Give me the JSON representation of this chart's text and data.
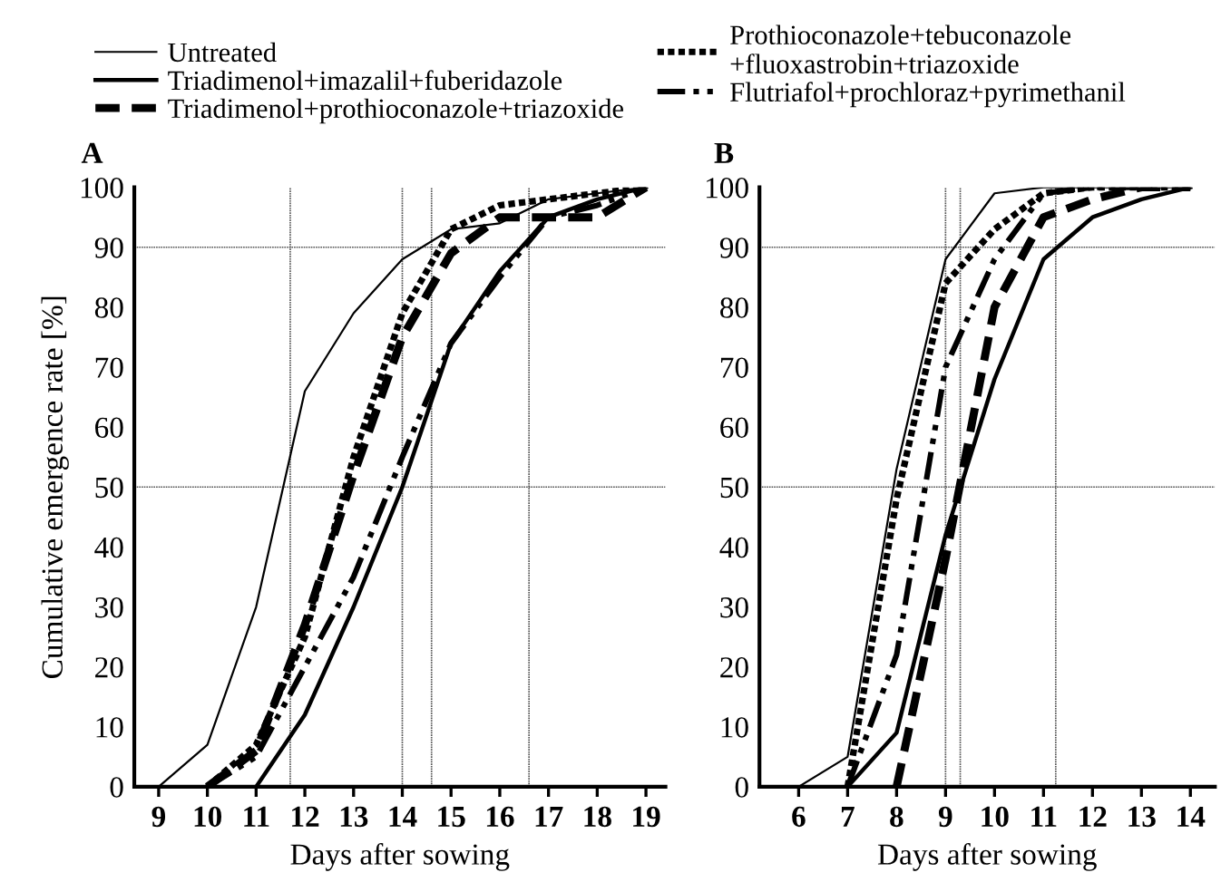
{
  "chart_data": [
    {
      "type": "line",
      "title": "A",
      "xlabel": "Days after sowing",
      "ylabel": "Cumulative emergence rate [%]",
      "x": [
        9,
        10,
        11,
        12,
        13,
        14,
        15,
        16,
        17,
        18,
        19
      ],
      "xlim": [
        8.5,
        19.4
      ],
      "xticks": [
        9,
        10,
        11,
        12,
        13,
        14,
        15,
        16,
        17,
        18,
        19
      ],
      "ylim": [
        0,
        100
      ],
      "yticks": [
        0,
        10,
        20,
        30,
        40,
        50,
        60,
        70,
        80,
        90,
        100
      ],
      "grid": false,
      "legend": "top",
      "marker": "none",
      "series": [
        {
          "name": "Untreated",
          "color": "#000000",
          "line_style": "solid",
          "values": [
            0,
            7,
            30,
            66,
            79,
            88,
            93,
            94,
            98,
            99,
            100
          ]
        },
        {
          "name": "Triadimenol+imazalil+fuberidazole",
          "color": "#000000",
          "line_style": "solid",
          "values": [
            null,
            null,
            0,
            12,
            30,
            50,
            74,
            86,
            95,
            98,
            100
          ]
        },
        {
          "name": "Triadimenol+prothioconazole+triazoxide",
          "color": "#000000",
          "line_style": "dashed",
          "values": [
            null,
            0,
            6,
            27,
            52,
            75,
            89,
            95,
            95,
            95,
            100
          ]
        },
        {
          "name": "Prothioconazole+tebuconazole\n+fluoxastrobin+triazoxide",
          "color": "#000000",
          "line_style": "dotted",
          "values": [
            null,
            0,
            7,
            25,
            55,
            79,
            93,
            97,
            98,
            99,
            100
          ]
        },
        {
          "name": "Flutriafol+prochloraz+pyrimethanil",
          "color": "#000000",
          "line_style": "dashdot",
          "values": [
            null,
            0,
            5,
            20,
            35,
            55,
            74,
            85,
            95,
            97,
            100
          ]
        }
      ],
      "ref_lines": [
        {
          "axis": "y",
          "value": 50,
          "color": "#555555",
          "line_style": "dotted"
        },
        {
          "axis": "y",
          "value": 90,
          "color": "#555555",
          "line_style": "dotted"
        },
        {
          "axis": "x",
          "value": 11.7,
          "color": "#555555",
          "line_style": "dotted"
        },
        {
          "axis": "x",
          "value": 14.0,
          "color": "#555555",
          "line_style": "dotted"
        },
        {
          "axis": "x",
          "value": 14.6,
          "color": "#555555",
          "line_style": "dotted"
        },
        {
          "axis": "x",
          "value": 16.6,
          "color": "#555555",
          "line_style": "dotted"
        }
      ]
    },
    {
      "type": "line",
      "title": "B",
      "xlabel": "Days after sowing",
      "x": [
        6,
        7,
        8,
        9,
        10,
        11,
        12,
        13,
        14
      ],
      "xlim": [
        5.2,
        14.5
      ],
      "xticks": [
        6,
        7,
        8,
        9,
        10,
        11,
        12,
        13,
        14
      ],
      "ylim": [
        0,
        100
      ],
      "yticks": [
        0,
        10,
        20,
        30,
        40,
        50,
        60,
        70,
        80,
        90,
        100
      ],
      "grid": false,
      "marker": "none",
      "series": [
        {
          "color": "#000000",
          "line_style": "solid",
          "values": [
            0,
            5,
            53,
            88,
            99,
            100,
            100,
            100,
            100
          ]
        },
        {
          "color": "#000000",
          "line_style": "solid",
          "values": [
            null,
            0,
            9,
            42,
            68,
            88,
            95,
            98,
            100
          ]
        },
        {
          "color": "#000000",
          "line_style": "dashed",
          "values": [
            null,
            null,
            0,
            38,
            80,
            95,
            98,
            100,
            100
          ]
        },
        {
          "color": "#000000",
          "line_style": "dotted",
          "values": [
            null,
            0,
            48,
            84,
            93,
            99,
            100,
            100,
            100
          ]
        },
        {
          "color": "#000000",
          "line_style": "dashdot",
          "values": [
            null,
            0,
            22,
            70,
            88,
            99,
            100,
            100,
            100
          ]
        }
      ],
      "ref_lines": [
        {
          "axis": "y",
          "value": 50,
          "color": "#555555",
          "line_style": "dotted"
        },
        {
          "axis": "y",
          "value": 90,
          "color": "#555555",
          "line_style": "dotted"
        },
        {
          "axis": "x",
          "value": 9.0,
          "color": "#555555",
          "line_style": "dotted"
        },
        {
          "axis": "x",
          "value": 9.3,
          "color": "#555555",
          "line_style": "dotted"
        },
        {
          "axis": "x",
          "value": 11.25,
          "color": "#555555",
          "line_style": "dotted"
        }
      ]
    }
  ]
}
